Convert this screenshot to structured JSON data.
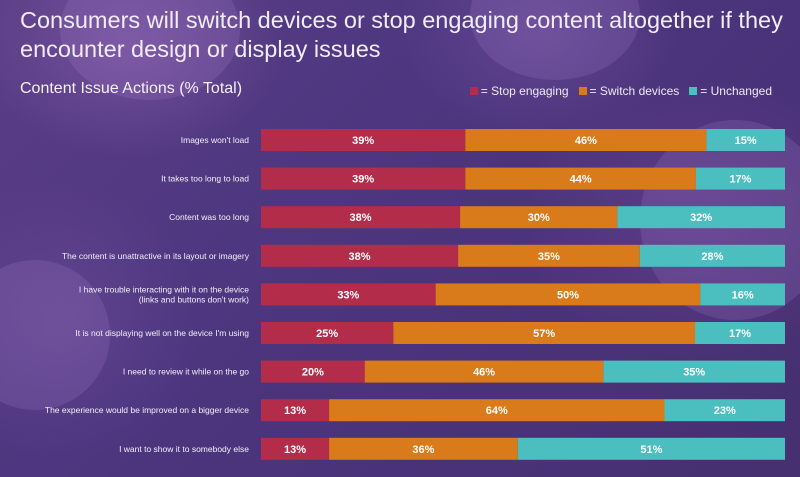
{
  "headline": "Consumers will switch devices or stop engaging content altogether if they encounter design or display issues",
  "chart_data": {
    "type": "bar",
    "orientation": "horizontal",
    "stacked": true,
    "title": "Content Issue Actions (% Total)",
    "categories": [
      [
        "Images won't load"
      ],
      [
        "It takes too long to load"
      ],
      [
        "Content was too long"
      ],
      [
        "The content is unattractive in its layout or imagery"
      ],
      [
        "I have trouble interacting with it on the device",
        "(links and buttons don't work)"
      ],
      [
        "It is not displaying well on the device I'm using"
      ],
      [
        "I need to review it while on the go"
      ],
      [
        "The experience would be improved on a bigger device"
      ],
      [
        "I want to show it to somebody else"
      ]
    ],
    "series": [
      {
        "name": "= Stop engaging",
        "color": "#b32d4b",
        "values": [
          39,
          39,
          38,
          38,
          33,
          25,
          20,
          13,
          13
        ]
      },
      {
        "name": "= Switch devices",
        "color": "#d97b1a",
        "values": [
          46,
          44,
          30,
          35,
          50,
          57,
          46,
          64,
          36
        ]
      },
      {
        "name": "= Unchanged",
        "color": "#4bbfc0",
        "values": [
          15,
          17,
          32,
          28,
          16,
          17,
          35,
          23,
          51
        ]
      }
    ],
    "value_suffix": "%",
    "legend_position": "top-right",
    "grid": false
  }
}
